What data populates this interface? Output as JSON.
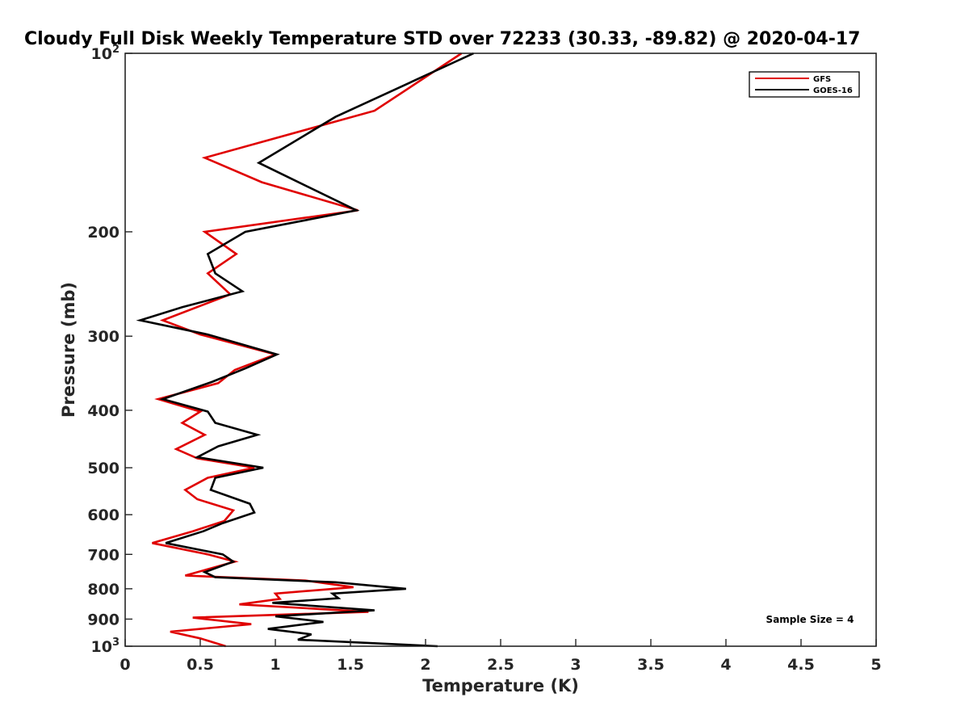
{
  "chart_data": {
    "type": "line",
    "title": "Cloudy Full Disk Weekly Temperature STD over 72233 (30.33, -89.82) @ 2020-04-17",
    "xlabel": "Temperature (K)",
    "ylabel": "Pressure (mb)",
    "xlim": [
      0,
      5
    ],
    "ylim": [
      100,
      1000
    ],
    "y_scale": "log",
    "y_reversed": true,
    "x_ticks": [
      "0",
      "0.5",
      "1",
      "1.5",
      "2",
      "2.5",
      "3",
      "3.5",
      "4",
      "4.5",
      "5"
    ],
    "y_ticks": [
      {
        "value": 100,
        "base": "10",
        "exp": "2"
      },
      {
        "value": 200,
        "label": "200"
      },
      {
        "value": 300,
        "label": "300"
      },
      {
        "value": 400,
        "label": "400"
      },
      {
        "value": 500,
        "label": "500"
      },
      {
        "value": 600,
        "label": "600"
      },
      {
        "value": 700,
        "label": "700"
      },
      {
        "value": 800,
        "label": "800"
      },
      {
        "value": 900,
        "label": "900"
      },
      {
        "value": 1000,
        "base": "10",
        "exp": "3"
      }
    ],
    "legend_position": "top-right",
    "grid": false,
    "annotation": "Sample Size = 4",
    "series": [
      {
        "name": "GFS",
        "color": "#e00000",
        "points": [
          [
            2.24,
            100
          ],
          [
            1.66,
            125
          ],
          [
            0.53,
            150
          ],
          [
            0.91,
            165
          ],
          [
            1.55,
            184
          ],
          [
            0.53,
            200
          ],
          [
            0.74,
            218
          ],
          [
            0.55,
            235
          ],
          [
            0.7,
            255
          ],
          [
            0.25,
            282
          ],
          [
            0.5,
            298
          ],
          [
            1.0,
            322
          ],
          [
            0.73,
            342
          ],
          [
            0.62,
            360
          ],
          [
            0.22,
            383
          ],
          [
            0.5,
            402
          ],
          [
            0.38,
            420
          ],
          [
            0.53,
            440
          ],
          [
            0.34,
            465
          ],
          [
            0.48,
            482
          ],
          [
            0.86,
            500
          ],
          [
            0.55,
            520
          ],
          [
            0.4,
            545
          ],
          [
            0.48,
            565
          ],
          [
            0.72,
            590
          ],
          [
            0.66,
            615
          ],
          [
            0.45,
            640
          ],
          [
            0.18,
            670
          ],
          [
            0.55,
            700
          ],
          [
            0.73,
            720
          ],
          [
            0.4,
            760
          ],
          [
            1.2,
            775
          ],
          [
            1.52,
            795
          ],
          [
            1.0,
            815
          ],
          [
            1.03,
            832
          ],
          [
            0.76,
            850
          ],
          [
            1.62,
            875
          ],
          [
            0.45,
            895
          ],
          [
            0.84,
            918
          ],
          [
            0.3,
            945
          ],
          [
            0.5,
            970
          ],
          [
            0.67,
            1000
          ]
        ]
      },
      {
        "name": "GOES-16",
        "color": "#000000",
        "points": [
          [
            2.32,
            100
          ],
          [
            1.4,
            128
          ],
          [
            0.89,
            153
          ],
          [
            1.54,
            184
          ],
          [
            0.8,
            200
          ],
          [
            0.55,
            218
          ],
          [
            0.6,
            235
          ],
          [
            0.78,
            252
          ],
          [
            0.38,
            268
          ],
          [
            0.1,
            282
          ],
          [
            0.55,
            298
          ],
          [
            1.01,
            322
          ],
          [
            0.8,
            340
          ],
          [
            0.58,
            358
          ],
          [
            0.25,
            383
          ],
          [
            0.55,
            402
          ],
          [
            0.6,
            420
          ],
          [
            0.88,
            440
          ],
          [
            0.62,
            460
          ],
          [
            0.48,
            480
          ],
          [
            0.92,
            500
          ],
          [
            0.6,
            520
          ],
          [
            0.57,
            545
          ],
          [
            0.83,
            575
          ],
          [
            0.86,
            595
          ],
          [
            0.65,
            620
          ],
          [
            0.52,
            640
          ],
          [
            0.27,
            670
          ],
          [
            0.65,
            700
          ],
          [
            0.72,
            720
          ],
          [
            0.53,
            750
          ],
          [
            0.6,
            765
          ],
          [
            1.4,
            780
          ],
          [
            1.87,
            800
          ],
          [
            1.38,
            815
          ],
          [
            1.42,
            830
          ],
          [
            0.98,
            845
          ],
          [
            1.66,
            870
          ],
          [
            1.0,
            890
          ],
          [
            1.32,
            910
          ],
          [
            0.95,
            935
          ],
          [
            1.24,
            955
          ],
          [
            1.15,
            975
          ],
          [
            2.08,
            1000
          ]
        ]
      }
    ]
  }
}
